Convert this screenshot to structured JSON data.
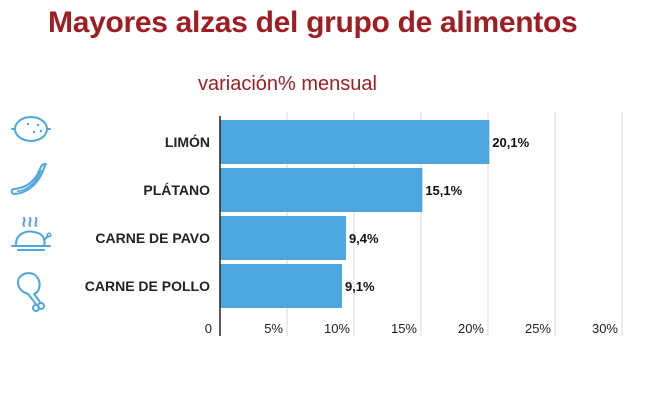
{
  "header": {
    "title": "Mayores alzas del grupo de alimentos",
    "subtitle": "variación% mensual"
  },
  "colors": {
    "title": "#a01d24",
    "bar": "#4ea6e1",
    "icon": "#4ea6e1",
    "grid": "#d8d8d8"
  },
  "icons": [
    "lemon-icon",
    "banana-icon",
    "roast-turkey-icon",
    "chicken-leg-icon"
  ],
  "chart_data": {
    "type": "bar",
    "orientation": "horizontal",
    "categories": [
      "LIMÓN",
      "PLÁTANO",
      "CARNE DE PAVO",
      "CARNE DE POLLO"
    ],
    "values": [
      20.1,
      15.1,
      9.4,
      9.1
    ],
    "value_labels": [
      "20,1%",
      "15,1%",
      "9,4%",
      "9,1%"
    ],
    "xlim": [
      0,
      30
    ],
    "xticks": [
      0,
      5,
      10,
      15,
      20,
      25,
      30
    ],
    "xtick_labels": [
      "0",
      "5%",
      "10%",
      "15%",
      "20%",
      "25%",
      "30%"
    ],
    "grid": true,
    "legend": "none"
  }
}
